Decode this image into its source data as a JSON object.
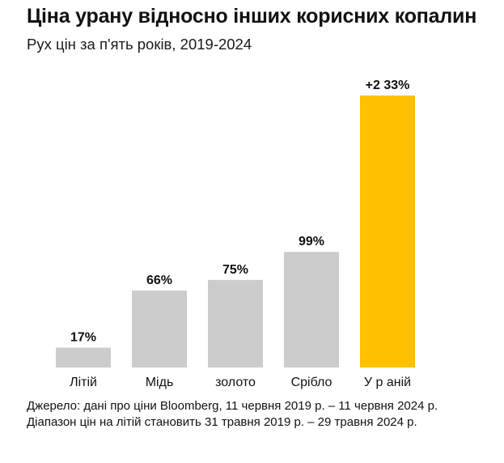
{
  "title": "Ціна урану відносно інших корисних копалин",
  "subtitle": "Рух цін за п'ять років, 2019-2024",
  "source": "Джерело: дані про ціни Bloomberg, 11 червня 2019 р. – 11 червня 2024 р. Діапазон цін на літій становить 31 травня 2019 р. – 29 травня 2024 р.",
  "colors": {
    "bar": "#cccccc",
    "highlight": "#ffc000",
    "text": "#111111"
  },
  "chart_data": {
    "type": "bar",
    "title": "Ціна урану відносно інших корисних копалин",
    "subtitle": "Рух цін за п'ять років, 2019-2024",
    "xlabel": "",
    "ylabel": "",
    "grid": false,
    "categories": [
      "Літій",
      "Мідь",
      "золото",
      "Срібло",
      "У р аній"
    ],
    "values": [
      17,
      66,
      75,
      99,
      233
    ],
    "labels": [
      "17%",
      "66%",
      "75%",
      "99%",
      "+2 33%"
    ],
    "highlight_index": 4,
    "ylim": [
      0,
      233
    ]
  }
}
